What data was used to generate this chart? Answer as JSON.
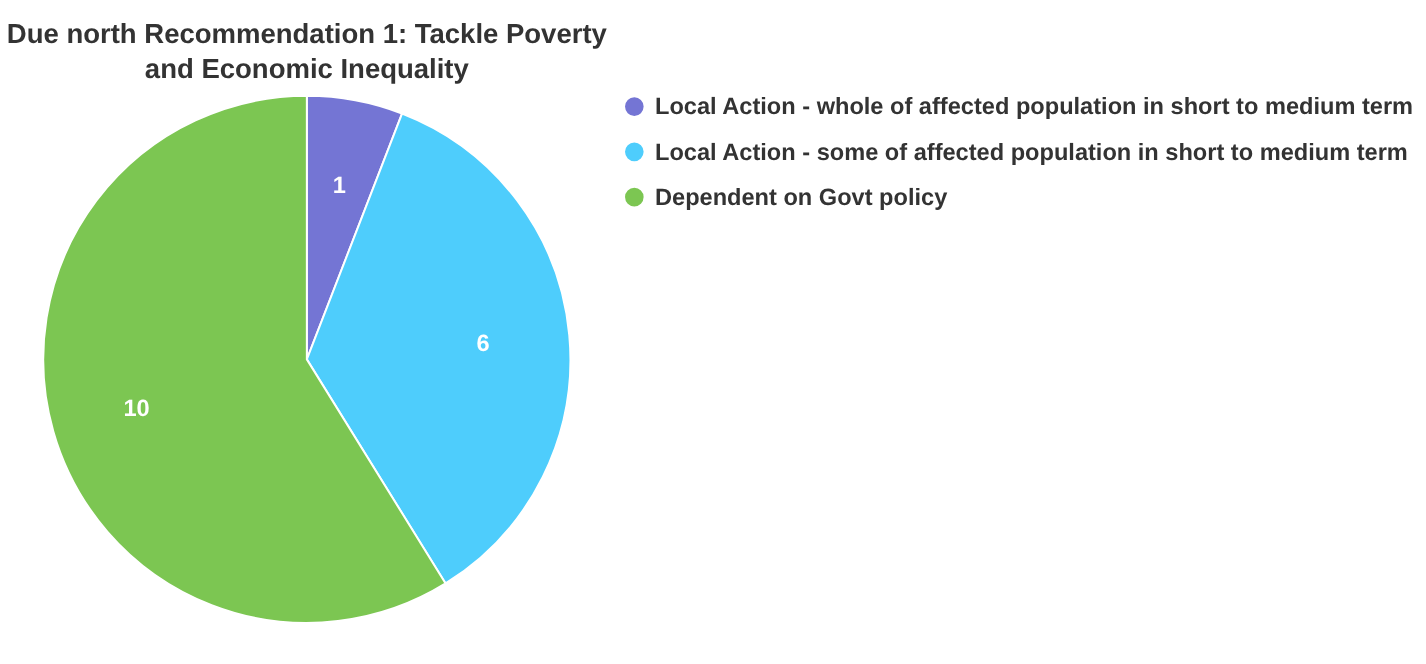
{
  "chart_data": {
    "type": "pie",
    "title": "Due north Recommendation 1: Tackle Poverty and Economic Inequality",
    "categories": [
      "Local Action - whole of affected population in short to medium term",
      "Local Action - some of affected population in short to medium term",
      "Dependent on Govt policy"
    ],
    "values": [
      1,
      6,
      10
    ],
    "colors": [
      "#7475d4",
      "#4ecdfc",
      "#7cc652"
    ],
    "data_labels": true,
    "legend": "right"
  }
}
